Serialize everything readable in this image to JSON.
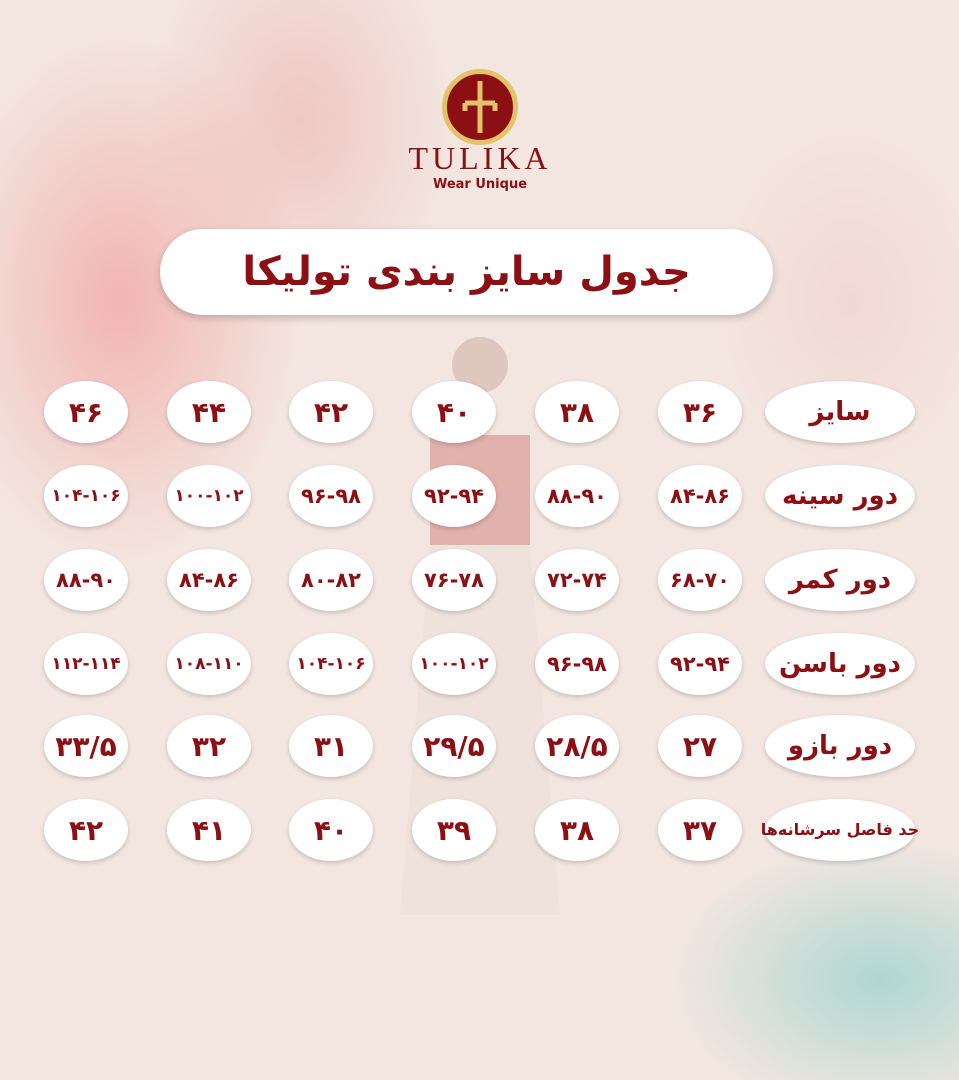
{
  "brand": {
    "name": "TULIKA",
    "tagline": "Wear Unique",
    "logo_icon": "tulika-emblem",
    "primary_color": "#8c0f14",
    "accent_color": "#e2c36a"
  },
  "title": "جدول سایز بندی تولیکا",
  "table": {
    "rows": [
      {
        "label": "سایز",
        "values": [
          "۳۶",
          "۳۸",
          "۴۰",
          "۴۲",
          "۴۴",
          "۴۶"
        ]
      },
      {
        "label": "دور سینه",
        "values": [
          "۸۴-۸۶",
          "۸۸-۹۰",
          "۹۲-۹۴",
          "۹۶-۹۸",
          "۱۰۰-۱۰۲",
          "۱۰۴-۱۰۶"
        ]
      },
      {
        "label": "دور کمر",
        "values": [
          "۶۸-۷۰",
          "۷۲-۷۴",
          "۷۶-۷۸",
          "۸۰-۸۲",
          "۸۴-۸۶",
          "۸۸-۹۰"
        ]
      },
      {
        "label": "دور باسن",
        "values": [
          "۹۲-۹۴",
          "۹۶-۹۸",
          "۱۰۰-۱۰۲",
          "۱۰۴-۱۰۶",
          "۱۰۸-۱۱۰",
          "۱۱۲-۱۱۴"
        ]
      },
      {
        "label": "دور بازو",
        "values": [
          "۲۷",
          "۲۸/۵",
          "۲۹/۵",
          "۳۱",
          "۳۲",
          "۳۳/۵"
        ]
      },
      {
        "label": "حد فاصل سرشانه‌ها",
        "values": [
          "۳۷",
          "۳۸",
          "۳۹",
          "۴۰",
          "۴۱",
          "۴۲"
        ]
      }
    ]
  }
}
